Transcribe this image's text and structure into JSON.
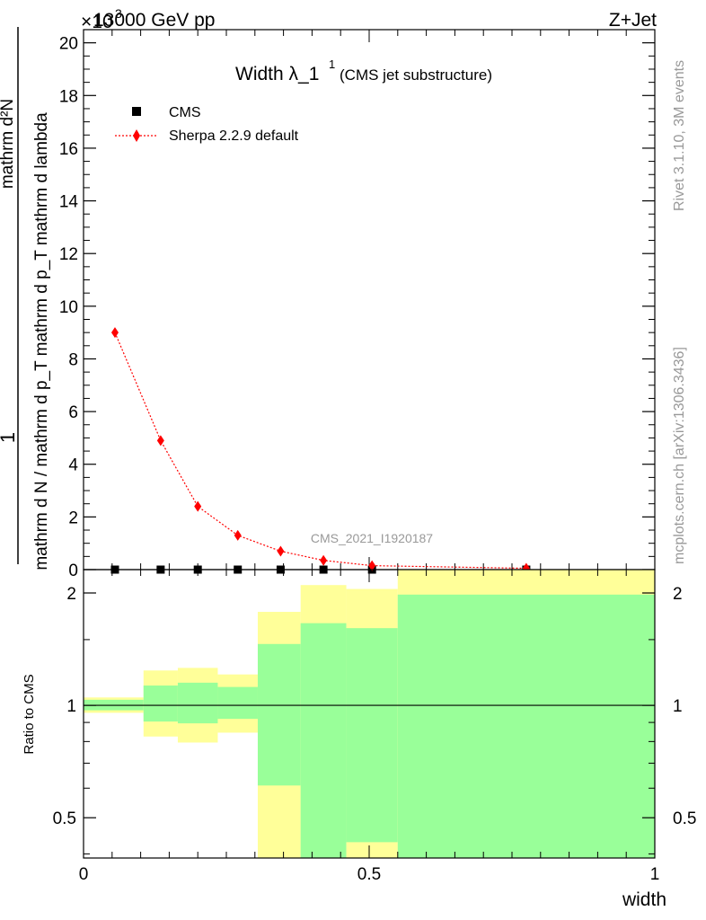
{
  "header": {
    "beam_label": "13000 GeV pp",
    "exponent_label": "×10",
    "exponent_power": "3",
    "process_label": "Z+Jet"
  },
  "side": {
    "rivet_label": "Rivet 3.1.10,  3M events",
    "mcplots_label": "mcplots.cern.ch [arXiv:1306.3436]"
  },
  "chart_data": [
    {
      "type": "scatter",
      "title": "Width λ_1",
      "title_super": "1",
      "title_suffix": "(CMS jet substructure)",
      "watermark": "CMS_2021_I1920187",
      "ylabel_num": "1",
      "ylabel_den": "mathrm d N / mathrm d p_T mathrm d p_T mathrm d lambda",
      "ylabel_top": "mathrm d²N",
      "xlim": [
        0,
        1
      ],
      "ylim": [
        0,
        20.5
      ],
      "y_ticks": [
        0,
        2,
        4,
        6,
        8,
        10,
        12,
        14,
        16,
        18,
        20
      ],
      "y_tick_labels": [
        "0",
        "2",
        "4",
        "6",
        "8",
        "10",
        "12",
        "14",
        "16",
        "18",
        "20"
      ],
      "legend_position": "top-left",
      "series": [
        {
          "name": "CMS",
          "marker": "square",
          "color": "#000000",
          "x": [
            0.055,
            0.135,
            0.2,
            0.27,
            0.345,
            0.42,
            0.505,
            0.775
          ],
          "y": [
            0.0,
            0.0,
            0.0,
            0.0,
            0.0,
            0.0,
            0.0,
            0.0
          ]
        },
        {
          "name": "Sherpa 2.2.9 default",
          "marker": "diamond",
          "line": "dotted",
          "color": "#ff0000",
          "x": [
            0.055,
            0.135,
            0.2,
            0.27,
            0.345,
            0.42,
            0.505,
            0.775
          ],
          "y": [
            9.0,
            4.9,
            2.4,
            1.3,
            0.7,
            0.35,
            0.15,
            0.05
          ]
        }
      ]
    },
    {
      "type": "area",
      "ylabel": "Ratio to CMS",
      "xlabel": "width",
      "xlim": [
        0,
        1
      ],
      "ylim": [
        0.39,
        2.31
      ],
      "y_scale": "log",
      "x_tick_labels": [
        "0",
        "0.5",
        "1"
      ],
      "x_ticks": [
        0,
        0.5,
        1
      ],
      "y_tick_labels": [
        "0.5",
        "1",
        "2"
      ],
      "y_ticks": [
        0.5,
        1,
        2
      ],
      "reference_line": 1,
      "bins": [
        {
          "x0": 0.0,
          "x1": 0.105,
          "yellow": [
            0.955,
            1.05
          ],
          "green": [
            0.97,
            1.035
          ]
        },
        {
          "x0": 0.105,
          "x1": 0.165,
          "yellow": [
            0.825,
            1.24
          ],
          "green": [
            0.905,
            1.13
          ]
        },
        {
          "x0": 0.165,
          "x1": 0.235,
          "yellow": [
            0.795,
            1.26
          ],
          "green": [
            0.895,
            1.15
          ]
        },
        {
          "x0": 0.235,
          "x1": 0.305,
          "yellow": [
            0.845,
            1.21
          ],
          "green": [
            0.92,
            1.12
          ]
        },
        {
          "x0": 0.305,
          "x1": 0.38,
          "yellow": [
            0.39,
            1.78
          ],
          "green": [
            0.61,
            1.46
          ]
        },
        {
          "x0": 0.38,
          "x1": 0.46,
          "yellow": [
            0.39,
            2.1
          ],
          "green": [
            0.365,
            1.66
          ]
        },
        {
          "x0": 0.46,
          "x1": 0.55,
          "yellow": [
            0.39,
            2.05
          ],
          "green": [
            0.43,
            1.61
          ]
        },
        {
          "x0": 0.55,
          "x1": 1.0,
          "yellow": [
            0.39,
            2.31
          ],
          "green": [
            0.39,
            1.98
          ]
        }
      ],
      "colors": {
        "yellow": "#ffff99",
        "green": "#99ff99"
      }
    }
  ]
}
